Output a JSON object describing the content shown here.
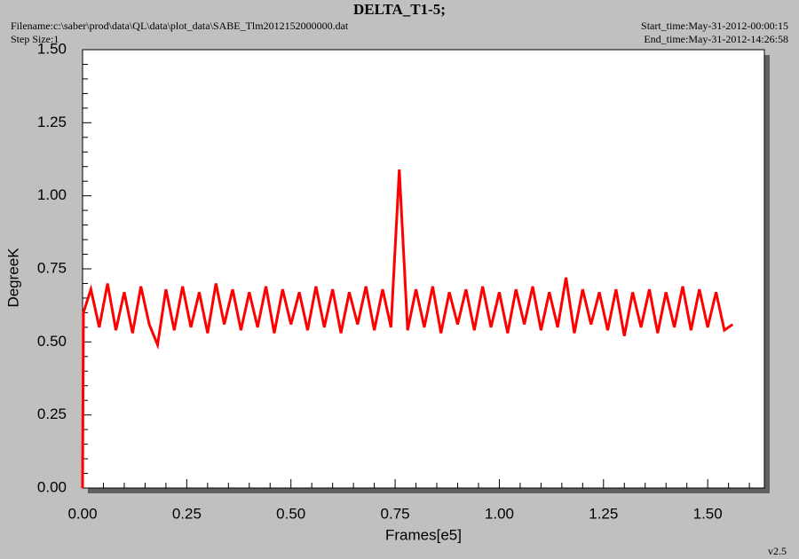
{
  "chart_data": {
    "type": "line",
    "title": "DELTA_T1-5;",
    "filename": "Filename:c:\\saber\\prod\\data\\QL\\data\\plot_data\\SABE_Tlm2012152000000.dat",
    "step_size": "Step Size:1",
    "start_time": "Start_time:May-31-2012-00:00:15",
    "end_time": "End_time:May-31-2012-14:26:58",
    "version": "v2.5",
    "x_label": "Frames[e5]",
    "y_label": "DegreeK",
    "color": "#ff0000",
    "xlim": [
      0,
      1.636
    ],
    "ylim": [
      0,
      1.5
    ],
    "xticks": [
      {
        "value": 0,
        "label": "0.00"
      },
      {
        "value": 0.25,
        "label": "0.25"
      },
      {
        "value": 0.5,
        "label": "0.50"
      },
      {
        "value": 0.75,
        "label": "0.75"
      },
      {
        "value": 1,
        "label": "1.00"
      },
      {
        "value": 1.25,
        "label": "1.25"
      },
      {
        "value": 1.5,
        "label": "1.50"
      }
    ],
    "yticks": [
      {
        "value": 0,
        "label": "0.00"
      },
      {
        "value": 0.25,
        "label": "0.25"
      },
      {
        "value": 0.5,
        "label": "0.50"
      },
      {
        "value": 0.75,
        "label": "0.75"
      },
      {
        "value": 1,
        "label": "1.00"
      },
      {
        "value": 1.25,
        "label": "1.25"
      },
      {
        "value": 1.5,
        "label": "1.50"
      }
    ],
    "xminorticks": [
      0.05,
      0.1,
      0.15,
      0.2,
      0.3,
      0.35,
      0.4,
      0.45,
      0.55,
      0.6,
      0.65,
      0.7,
      0.8,
      0.85,
      0.9,
      0.95,
      1.05,
      1.1,
      1.15,
      1.2,
      1.3,
      1.35,
      1.4,
      1.45,
      1.55,
      1.6
    ],
    "yminorticks": [
      0.05,
      0.1,
      0.15,
      0.2,
      0.3,
      0.35,
      0.4,
      0.45,
      0.55,
      0.6,
      0.65,
      0.7,
      0.8,
      0.85,
      0.9,
      0.95,
      1.05,
      1.1,
      1.15,
      1.2,
      1.3,
      1.35,
      1.4,
      1.45
    ],
    "x": [
      0,
      0.002,
      0.02,
      0.04,
      0.06,
      0.08,
      0.1,
      0.12,
      0.14,
      0.16,
      0.18,
      0.2,
      0.22,
      0.24,
      0.26,
      0.28,
      0.3,
      0.32,
      0.34,
      0.36,
      0.38,
      0.4,
      0.42,
      0.44,
      0.46,
      0.48,
      0.5,
      0.52,
      0.54,
      0.56,
      0.58,
      0.6,
      0.62,
      0.64,
      0.66,
      0.68,
      0.7,
      0.72,
      0.74,
      0.76,
      0.78,
      0.8,
      0.82,
      0.84,
      0.86,
      0.88,
      0.9,
      0.92,
      0.94,
      0.96,
      0.98,
      1,
      1.02,
      1.04,
      1.06,
      1.08,
      1.1,
      1.12,
      1.14,
      1.16,
      1.18,
      1.2,
      1.22,
      1.24,
      1.26,
      1.28,
      1.3,
      1.32,
      1.34,
      1.36,
      1.38,
      1.4,
      1.42,
      1.44,
      1.46,
      1.48,
      1.5,
      1.52,
      1.54,
      1.56
    ],
    "values": [
      0,
      0.6,
      0.68,
      0.55,
      0.7,
      0.54,
      0.67,
      0.53,
      0.69,
      0.56,
      0.49,
      0.68,
      0.54,
      0.69,
      0.55,
      0.67,
      0.53,
      0.7,
      0.56,
      0.68,
      0.54,
      0.67,
      0.55,
      0.69,
      0.53,
      0.68,
      0.56,
      0.67,
      0.54,
      0.69,
      0.55,
      0.68,
      0.53,
      0.67,
      0.56,
      0.69,
      0.54,
      0.68,
      0.55,
      1.09,
      0.54,
      0.68,
      0.55,
      0.69,
      0.53,
      0.67,
      0.56,
      0.68,
      0.54,
      0.69,
      0.55,
      0.67,
      0.53,
      0.68,
      0.56,
      0.69,
      0.54,
      0.67,
      0.55,
      0.72,
      0.53,
      0.68,
      0.56,
      0.67,
      0.54,
      0.68,
      0.52,
      0.67,
      0.55,
      0.68,
      0.53,
      0.67,
      0.55,
      0.69,
      0.54,
      0.68,
      0.55,
      0.67,
      0.54,
      0.56
    ]
  }
}
